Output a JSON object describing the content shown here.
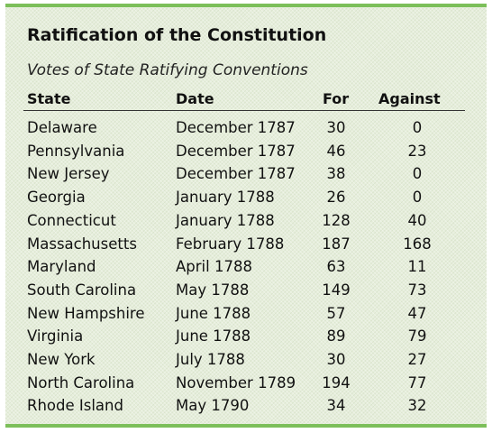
{
  "header": {
    "title": "Ratification of the Constitution",
    "subtitle": "Votes of State Ratifying Conventions"
  },
  "table": {
    "columns": [
      "State",
      "Date",
      "For",
      "Against"
    ],
    "rows": [
      [
        "Delaware",
        "December 1787",
        30,
        0
      ],
      [
        "Pennsylvania",
        "December 1787",
        46,
        23
      ],
      [
        "New Jersey",
        "December 1787",
        38,
        0
      ],
      [
        "Georgia",
        "January 1788",
        26,
        0
      ],
      [
        "Connecticut",
        "January 1788",
        128,
        40
      ],
      [
        "Massachusetts",
        "February 1788",
        187,
        168
      ],
      [
        "Maryland",
        "April 1788",
        63,
        11
      ],
      [
        "South Carolina",
        "May 1788",
        149,
        73
      ],
      [
        "New Hampshire",
        "June 1788",
        57,
        47
      ],
      [
        "Virginia",
        "June 1788",
        89,
        79
      ],
      [
        "New York",
        "July 1788",
        30,
        27
      ],
      [
        "North Carolina",
        "November 1789",
        194,
        77
      ],
      [
        "Rhode Island",
        "May 1790",
        34,
        32
      ]
    ]
  }
}
